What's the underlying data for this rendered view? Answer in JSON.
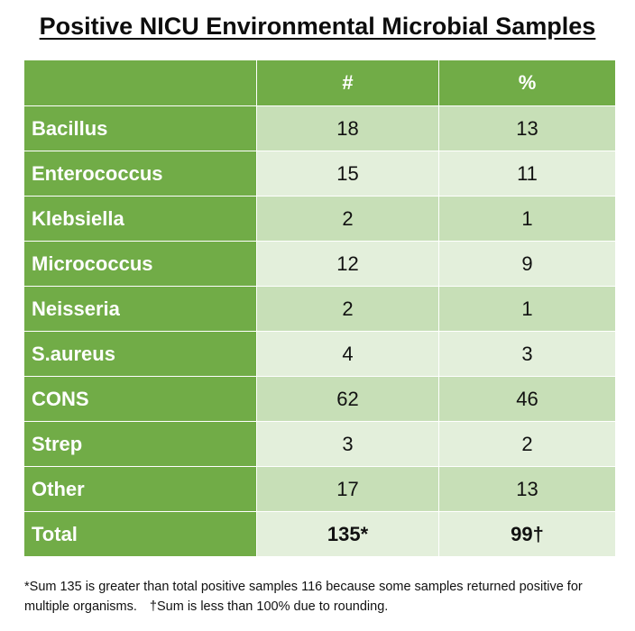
{
  "title": "Positive NICU Environmental Microbial Samples",
  "chart_data": {
    "type": "table",
    "columns": [
      "",
      "#",
      "%"
    ],
    "rows": [
      {
        "label": "Bacillus",
        "count": "18",
        "percent": "13"
      },
      {
        "label": "Enterococcus",
        "count": "15",
        "percent": "11"
      },
      {
        "label": "Klebsiella",
        "count": "2",
        "percent": "1"
      },
      {
        "label": "Micrococcus",
        "count": "12",
        "percent": "9"
      },
      {
        "label": "Neisseria",
        "count": "2",
        "percent": "1"
      },
      {
        "label": "S.aureus",
        "count": "4",
        "percent": "3"
      },
      {
        "label": "CONS",
        "count": "62",
        "percent": "46"
      },
      {
        "label": "Strep",
        "count": "3",
        "percent": "2"
      },
      {
        "label": "Other",
        "count": "17",
        "percent": "13"
      }
    ],
    "total": {
      "label": "Total",
      "count": "135*",
      "percent": "99†"
    }
  },
  "footnotes": {
    "note1": "*Sum 135 is greater than total positive samples 116 because some samples returned positive for multiple organisms.",
    "note2": "†Sum is less than 100% due to rounding."
  },
  "colors": {
    "header_green": "#71ac47",
    "row_dark": "#c7dfb7",
    "row_light": "#e3efdb"
  }
}
